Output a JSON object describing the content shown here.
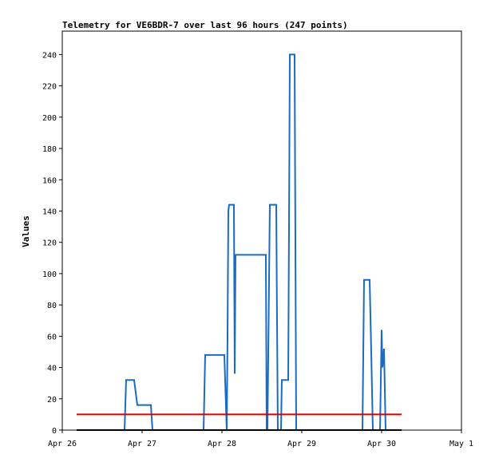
{
  "chart_data": {
    "type": "line",
    "title": "Telemetry for VE6BDR-7 over last 96 hours (247 points)",
    "xlabel": "",
    "ylabel": "Values",
    "x_ticks": [
      "Apr 26",
      "Apr 27",
      "Apr 28",
      "Apr 29",
      "Apr 30",
      "May 1"
    ],
    "y_ticks": [
      "0",
      "20",
      "40",
      "60",
      "80",
      "100",
      "120",
      "140",
      "160",
      "180",
      "200",
      "220",
      "240"
    ],
    "xlim_days": [
      0,
      5
    ],
    "ylim": [
      0,
      255
    ],
    "grid": false,
    "colors": {
      "series_1": "#1a6bc4",
      "series_2": "#e00000",
      "series_3": "#000000"
    },
    "series": [
      {
        "color": "#1a6bc4",
        "points": [
          [
            0.78,
            0
          ],
          [
            0.8,
            32
          ],
          [
            0.9,
            32
          ],
          [
            0.94,
            16
          ],
          [
            1.11,
            16
          ],
          [
            1.13,
            0
          ],
          [
            1.77,
            0
          ],
          [
            1.79,
            48
          ],
          [
            2.03,
            48
          ],
          [
            2.06,
            0
          ],
          [
            2.07,
            60
          ],
          [
            2.08,
            140
          ],
          [
            2.09,
            144
          ],
          [
            2.15,
            144
          ],
          [
            2.16,
            36
          ],
          [
            2.17,
            112
          ],
          [
            2.55,
            112
          ],
          [
            2.56,
            0
          ],
          [
            2.57,
            0
          ],
          [
            2.6,
            144
          ],
          [
            2.68,
            144
          ],
          [
            2.69,
            70
          ],
          [
            2.7,
            0
          ],
          [
            2.74,
            0
          ],
          [
            2.75,
            32
          ],
          [
            2.83,
            32
          ],
          [
            2.84,
            130
          ],
          [
            2.85,
            240
          ],
          [
            2.91,
            240
          ],
          [
            2.92,
            120
          ],
          [
            2.93,
            0
          ],
          [
            3.76,
            0
          ],
          [
            3.78,
            96
          ],
          [
            3.85,
            96
          ],
          [
            3.87,
            50
          ],
          [
            3.89,
            0
          ],
          [
            3.98,
            0
          ],
          [
            4.0,
            64
          ],
          [
            4.01,
            40
          ],
          [
            4.03,
            52
          ],
          [
            4.05,
            0
          ]
        ]
      },
      {
        "color": "#e00000",
        "points": [
          [
            0.18,
            10
          ],
          [
            4.25,
            10
          ]
        ]
      },
      {
        "color": "#000000",
        "points": [
          [
            0.18,
            0
          ],
          [
            4.25,
            0
          ]
        ]
      }
    ]
  }
}
